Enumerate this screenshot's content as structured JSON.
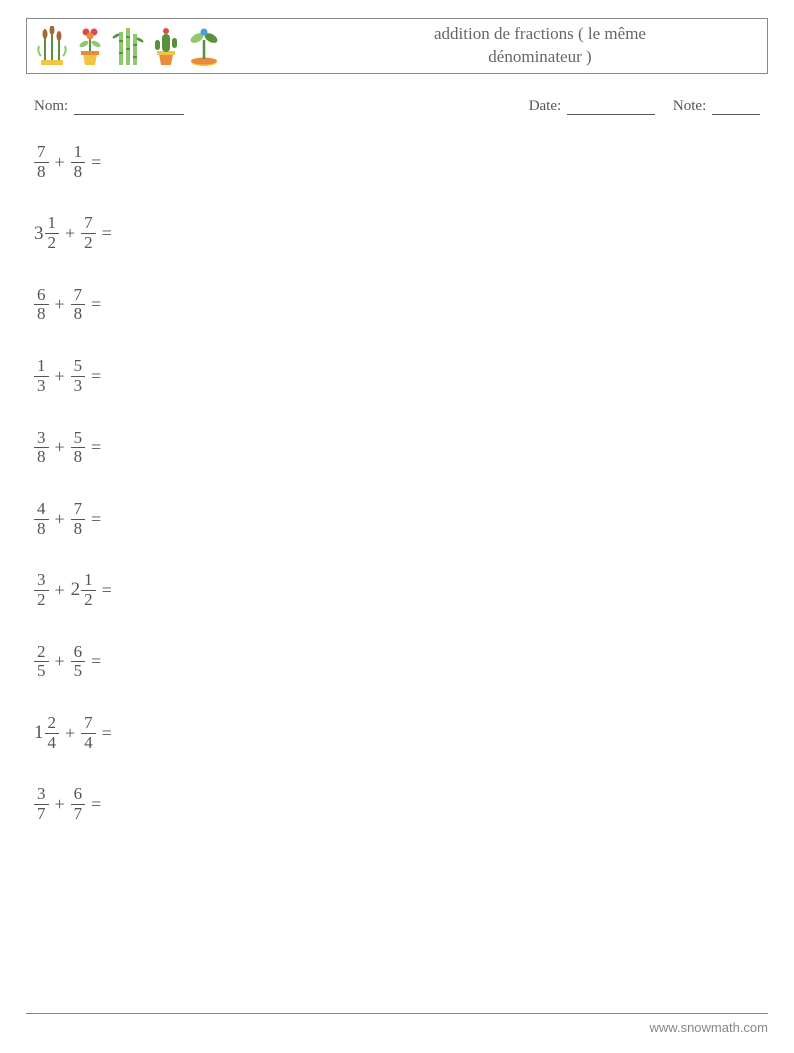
{
  "header": {
    "title_line1": "addition de fractions ( le même",
    "title_line2": "dénominateur )"
  },
  "meta": {
    "name_label": "Nom:",
    "date_label": "Date:",
    "note_label": "Note:",
    "name_blank_width": 110,
    "date_blank_width": 88,
    "note_blank_width": 48
  },
  "layout": {
    "problem_fontsize": 19,
    "frac_fontsize": 17,
    "title_fontsize": 17,
    "meta_fontsize": 15,
    "footer_fontsize": 13,
    "text_color": "#555555",
    "border_color": "#888888",
    "background_color": "#ffffff",
    "problem_spacing": 33
  },
  "problems": [
    {
      "a": {
        "whole": null,
        "num": "7",
        "den": "8"
      },
      "op": "+",
      "b": {
        "whole": null,
        "num": "1",
        "den": "8"
      }
    },
    {
      "a": {
        "whole": "3",
        "num": "1",
        "den": "2"
      },
      "op": "+",
      "b": {
        "whole": null,
        "num": "7",
        "den": "2"
      }
    },
    {
      "a": {
        "whole": null,
        "num": "6",
        "den": "8"
      },
      "op": "+",
      "b": {
        "whole": null,
        "num": "7",
        "den": "8"
      }
    },
    {
      "a": {
        "whole": null,
        "num": "1",
        "den": "3"
      },
      "op": "+",
      "b": {
        "whole": null,
        "num": "5",
        "den": "3"
      }
    },
    {
      "a": {
        "whole": null,
        "num": "3",
        "den": "8"
      },
      "op": "+",
      "b": {
        "whole": null,
        "num": "5",
        "den": "8"
      }
    },
    {
      "a": {
        "whole": null,
        "num": "4",
        "den": "8"
      },
      "op": "+",
      "b": {
        "whole": null,
        "num": "7",
        "den": "8"
      }
    },
    {
      "a": {
        "whole": null,
        "num": "3",
        "den": "2"
      },
      "op": "+",
      "b": {
        "whole": "2",
        "num": "1",
        "den": "2"
      }
    },
    {
      "a": {
        "whole": null,
        "num": "2",
        "den": "5"
      },
      "op": "+",
      "b": {
        "whole": null,
        "num": "6",
        "den": "5"
      }
    },
    {
      "a": {
        "whole": "1",
        "num": "2",
        "den": "4"
      },
      "op": "+",
      "b": {
        "whole": null,
        "num": "7",
        "den": "4"
      }
    },
    {
      "a": {
        "whole": null,
        "num": "3",
        "den": "7"
      },
      "op": "+",
      "b": {
        "whole": null,
        "num": "6",
        "den": "7"
      }
    }
  ],
  "icons": {
    "names": [
      "reeds-icon",
      "flower-pot-icon",
      "bamboo-icon",
      "cactus-pot-icon",
      "sprout-icon"
    ],
    "colors": {
      "green_dark": "#5a8f3d",
      "green_light": "#8fc96b",
      "yellow": "#f0c544",
      "orange": "#e88b3a",
      "red": "#d84c4c",
      "brown": "#a06a3a",
      "blue": "#4aa0d8"
    }
  },
  "footer": {
    "text": "www.snowmath.com"
  }
}
